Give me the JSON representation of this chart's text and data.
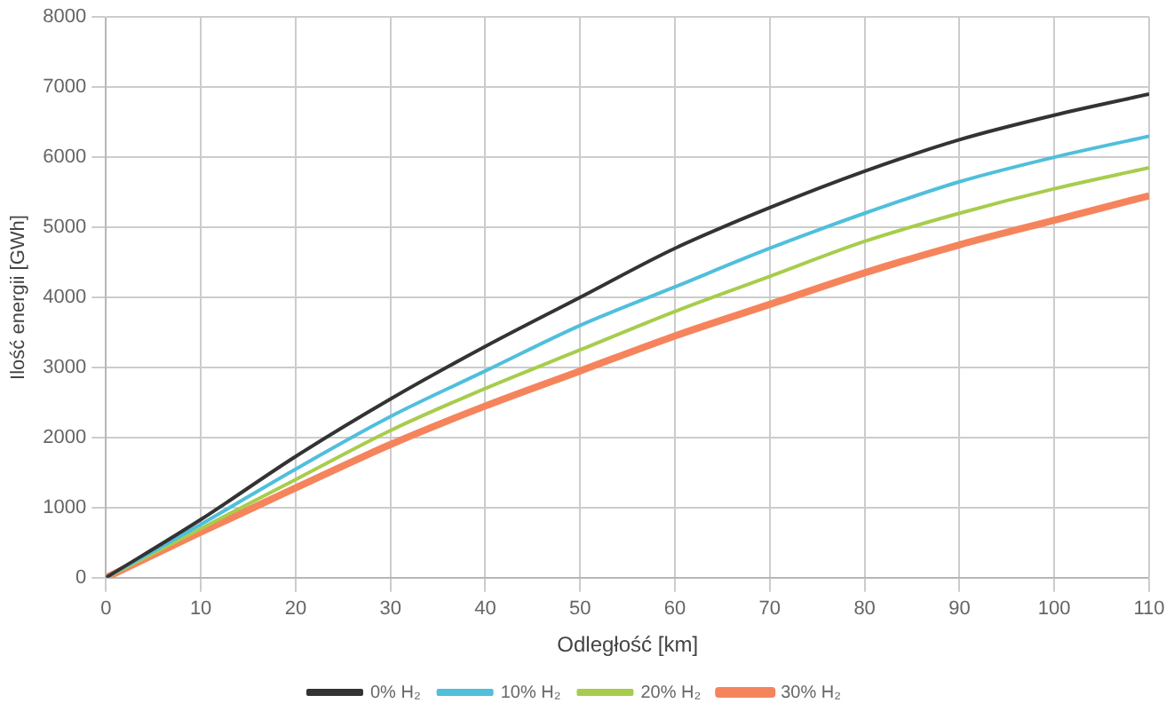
{
  "chart_data": {
    "type": "line",
    "xlabel": "Odległość [km]",
    "ylabel": "Ilość energii [GWh]",
    "x": [
      0,
      10,
      20,
      30,
      40,
      50,
      60,
      70,
      80,
      90,
      100,
      110
    ],
    "series": [
      {
        "name": "0% H₂",
        "color": "#333333",
        "values": [
          0,
          830,
          1730,
          2550,
          3300,
          4000,
          4700,
          5280,
          5800,
          6250,
          6600,
          6900
        ]
      },
      {
        "name": "10% H₂",
        "color": "#4fbfdc",
        "values": [
          0,
          760,
          1550,
          2300,
          2950,
          3600,
          4150,
          4700,
          5200,
          5650,
          6000,
          6300
        ]
      },
      {
        "name": "20% H₂",
        "color": "#a8cc4c",
        "values": [
          0,
          700,
          1400,
          2100,
          2700,
          3250,
          3800,
          4300,
          4800,
          5200,
          5550,
          5850
        ]
      },
      {
        "name": "30% H₂",
        "color": "#f5845c",
        "values": [
          0,
          650,
          1280,
          1900,
          2450,
          2950,
          3450,
          3900,
          4350,
          4750,
          5100,
          5450
        ]
      }
    ],
    "xlim": [
      0,
      110
    ],
    "xticks": [
      0,
      10,
      20,
      30,
      40,
      50,
      60,
      70,
      80,
      90,
      100,
      110
    ],
    "ylim": [
      0,
      8000
    ],
    "yticks": [
      0,
      1000,
      2000,
      3000,
      4000,
      5000,
      6000,
      7000,
      8000
    ],
    "grid": true,
    "legend": "bottom",
    "marker": "none",
    "line_style": "solid"
  }
}
